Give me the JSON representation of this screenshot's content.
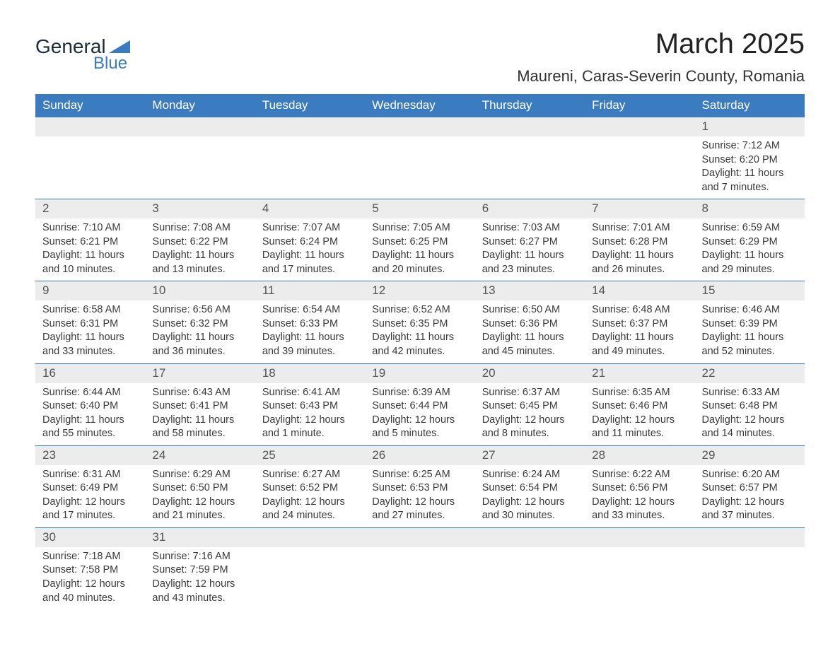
{
  "brand": {
    "line1": "General",
    "line2": "Blue",
    "logo_color": "#3b7bbf"
  },
  "title": "March 2025",
  "location": "Maureni, Caras-Severin County, Romania",
  "header_bg": "#3b7bbf",
  "daynum_bg": "#ececec",
  "text_color": "#3a3a3a",
  "columns": [
    "Sunday",
    "Monday",
    "Tuesday",
    "Wednesday",
    "Thursday",
    "Friday",
    "Saturday"
  ],
  "weeks": [
    {
      "nums": [
        "",
        "",
        "",
        "",
        "",
        "",
        "1"
      ],
      "cells": [
        null,
        null,
        null,
        null,
        null,
        null,
        {
          "sunrise": "7:12 AM",
          "sunset": "6:20 PM",
          "dlh": "11",
          "dlm": "7"
        }
      ]
    },
    {
      "nums": [
        "2",
        "3",
        "4",
        "5",
        "6",
        "7",
        "8"
      ],
      "cells": [
        {
          "sunrise": "7:10 AM",
          "sunset": "6:21 PM",
          "dlh": "11",
          "dlm": "10"
        },
        {
          "sunrise": "7:08 AM",
          "sunset": "6:22 PM",
          "dlh": "11",
          "dlm": "13"
        },
        {
          "sunrise": "7:07 AM",
          "sunset": "6:24 PM",
          "dlh": "11",
          "dlm": "17"
        },
        {
          "sunrise": "7:05 AM",
          "sunset": "6:25 PM",
          "dlh": "11",
          "dlm": "20"
        },
        {
          "sunrise": "7:03 AM",
          "sunset": "6:27 PM",
          "dlh": "11",
          "dlm": "23"
        },
        {
          "sunrise": "7:01 AM",
          "sunset": "6:28 PM",
          "dlh": "11",
          "dlm": "26"
        },
        {
          "sunrise": "6:59 AM",
          "sunset": "6:29 PM",
          "dlh": "11",
          "dlm": "29"
        }
      ]
    },
    {
      "nums": [
        "9",
        "10",
        "11",
        "12",
        "13",
        "14",
        "15"
      ],
      "cells": [
        {
          "sunrise": "6:58 AM",
          "sunset": "6:31 PM",
          "dlh": "11",
          "dlm": "33"
        },
        {
          "sunrise": "6:56 AM",
          "sunset": "6:32 PM",
          "dlh": "11",
          "dlm": "36"
        },
        {
          "sunrise": "6:54 AM",
          "sunset": "6:33 PM",
          "dlh": "11",
          "dlm": "39"
        },
        {
          "sunrise": "6:52 AM",
          "sunset": "6:35 PM",
          "dlh": "11",
          "dlm": "42"
        },
        {
          "sunrise": "6:50 AM",
          "sunset": "6:36 PM",
          "dlh": "11",
          "dlm": "45"
        },
        {
          "sunrise": "6:48 AM",
          "sunset": "6:37 PM",
          "dlh": "11",
          "dlm": "49"
        },
        {
          "sunrise": "6:46 AM",
          "sunset": "6:39 PM",
          "dlh": "11",
          "dlm": "52"
        }
      ]
    },
    {
      "nums": [
        "16",
        "17",
        "18",
        "19",
        "20",
        "21",
        "22"
      ],
      "cells": [
        {
          "sunrise": "6:44 AM",
          "sunset": "6:40 PM",
          "dlh": "11",
          "dlm": "55"
        },
        {
          "sunrise": "6:43 AM",
          "sunset": "6:41 PM",
          "dlh": "11",
          "dlm": "58"
        },
        {
          "sunrise": "6:41 AM",
          "sunset": "6:43 PM",
          "dlh": "12",
          "dlm": "1",
          "unit": "minute"
        },
        {
          "sunrise": "6:39 AM",
          "sunset": "6:44 PM",
          "dlh": "12",
          "dlm": "5"
        },
        {
          "sunrise": "6:37 AM",
          "sunset": "6:45 PM",
          "dlh": "12",
          "dlm": "8"
        },
        {
          "sunrise": "6:35 AM",
          "sunset": "6:46 PM",
          "dlh": "12",
          "dlm": "11"
        },
        {
          "sunrise": "6:33 AM",
          "sunset": "6:48 PM",
          "dlh": "12",
          "dlm": "14"
        }
      ]
    },
    {
      "nums": [
        "23",
        "24",
        "25",
        "26",
        "27",
        "28",
        "29"
      ],
      "cells": [
        {
          "sunrise": "6:31 AM",
          "sunset": "6:49 PM",
          "dlh": "12",
          "dlm": "17"
        },
        {
          "sunrise": "6:29 AM",
          "sunset": "6:50 PM",
          "dlh": "12",
          "dlm": "21"
        },
        {
          "sunrise": "6:27 AM",
          "sunset": "6:52 PM",
          "dlh": "12",
          "dlm": "24"
        },
        {
          "sunrise": "6:25 AM",
          "sunset": "6:53 PM",
          "dlh": "12",
          "dlm": "27"
        },
        {
          "sunrise": "6:24 AM",
          "sunset": "6:54 PM",
          "dlh": "12",
          "dlm": "30"
        },
        {
          "sunrise": "6:22 AM",
          "sunset": "6:56 PM",
          "dlh": "12",
          "dlm": "33"
        },
        {
          "sunrise": "6:20 AM",
          "sunset": "6:57 PM",
          "dlh": "12",
          "dlm": "37"
        }
      ]
    },
    {
      "nums": [
        "30",
        "31",
        "",
        "",
        "",
        "",
        ""
      ],
      "cells": [
        {
          "sunrise": "7:18 AM",
          "sunset": "7:58 PM",
          "dlh": "12",
          "dlm": "40"
        },
        {
          "sunrise": "7:16 AM",
          "sunset": "7:59 PM",
          "dlh": "12",
          "dlm": "43"
        },
        null,
        null,
        null,
        null,
        null
      ]
    }
  ]
}
